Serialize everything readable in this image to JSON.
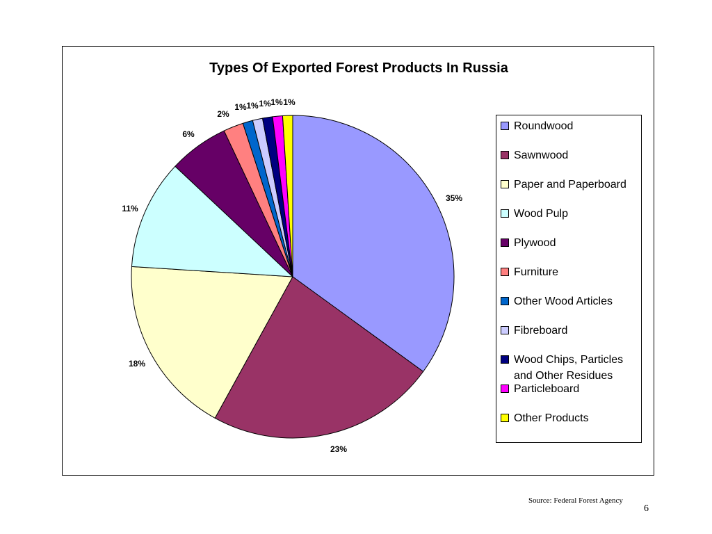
{
  "chart_data": {
    "type": "pie",
    "title": "Types Of Exported Forest Products In Russia",
    "labels": [
      "Roundwood",
      "Sawnwood",
      "Paper and Paperboard",
      "Wood Pulp",
      "Plywood",
      "Furniture",
      "Other Wood Articles",
      "Fibreboard",
      "Wood Chips, Particles and Other Residues",
      "Particleboard",
      "Other Products"
    ],
    "values": [
      35,
      23,
      18,
      11,
      6,
      2,
      1,
      1,
      1,
      1,
      1
    ],
    "value_labels": [
      "35%",
      "23%",
      "18%",
      "11%",
      "6%",
      "2%",
      "1%",
      "1%",
      "1%",
      "1%",
      "1%"
    ],
    "colors": [
      "#9999FF",
      "#993366",
      "#FFFFCC",
      "#CCFFFF",
      "#660066",
      "#FF8080",
      "#0066CC",
      "#CCCCFF",
      "#000080",
      "#FF00FF",
      "#FFFF00"
    ],
    "legend_position": "right"
  },
  "footer": {
    "source": "Source: Federal Forest Agency",
    "page_number": "6"
  }
}
